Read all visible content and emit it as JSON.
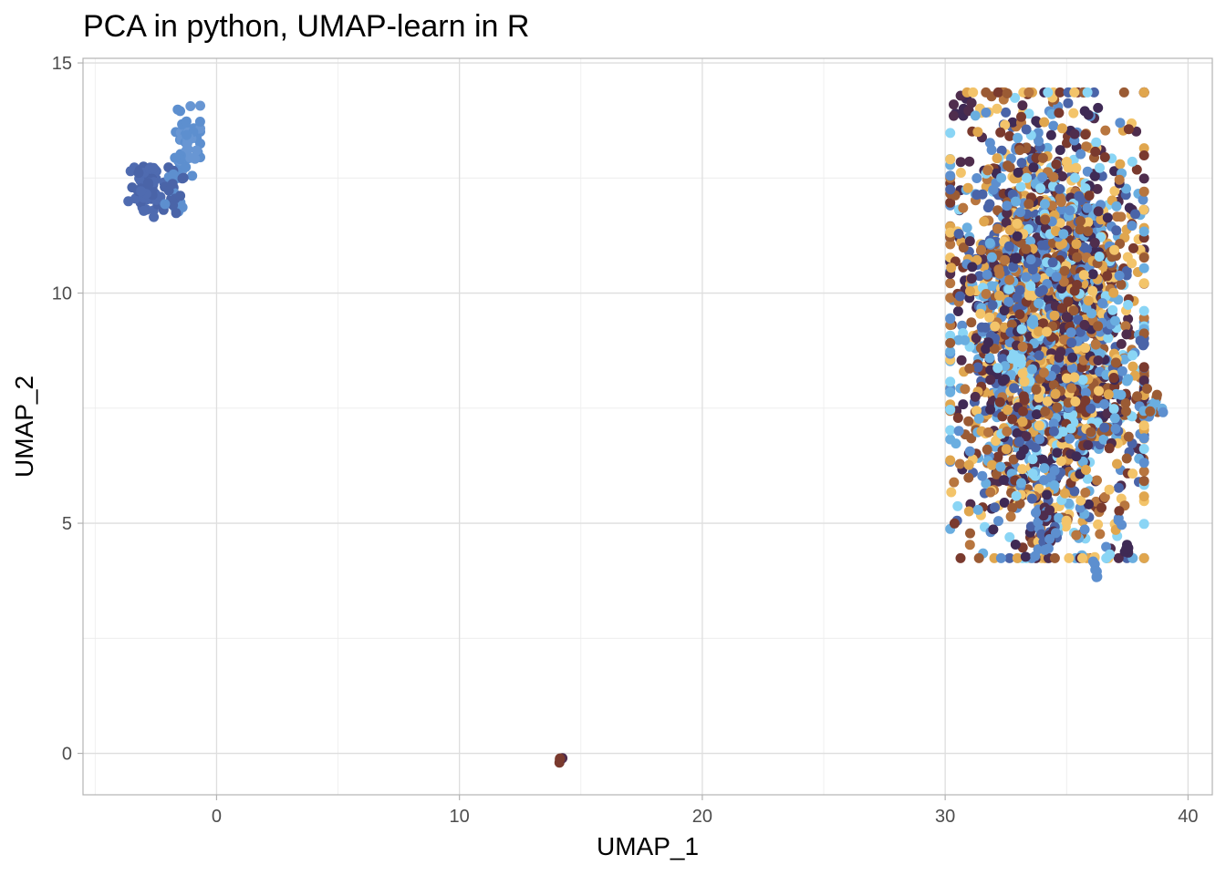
{
  "chart_data": {
    "type": "scatter",
    "title": "PCA in python, UMAP-learn in R",
    "xlabel": "UMAP_1",
    "ylabel": "UMAP_2",
    "xlim": [
      -5.5,
      41
    ],
    "ylim": [
      -0.9,
      15.1
    ],
    "x_ticks": [
      0,
      10,
      20,
      30,
      40
    ],
    "y_ticks": [
      0,
      5,
      10,
      15
    ],
    "x_tick_labels": [
      "0",
      "10",
      "20",
      "30",
      "40"
    ],
    "y_tick_labels": [
      "0",
      "5",
      "10",
      "15"
    ],
    "grid": true,
    "legend": "none",
    "colors": [
      "#4f2d4d",
      "#7a3a2e",
      "#9b5b34",
      "#b8763f",
      "#e0a64e",
      "#f3c46a",
      "#4a64a8",
      "#5d8fcf",
      "#6aaee0",
      "#8ad5f5",
      "#3f2a55"
    ],
    "clusters": [
      {
        "name": "",
        "center": [
          -2.9,
          12.3
        ],
        "spread": [
          0.35,
          0.3
        ],
        "count": 60,
        "colors": [
          "#4a64a8",
          "#4f6bb0"
        ]
      },
      {
        "name": "",
        "center": [
          -1.2,
          13.3
        ],
        "spread": [
          0.25,
          0.35
        ],
        "count": 60,
        "colors": [
          "#5d8fcf",
          "#6896d3"
        ]
      },
      {
        "name": "",
        "center": [
          -1.7,
          12.3
        ],
        "spread": [
          0.25,
          0.4
        ],
        "count": 30,
        "colors": [
          "#4a64a8",
          "#5d8fcf"
        ]
      },
      {
        "name": "",
        "center": [
          30.7,
          14.05
        ],
        "spread": [
          0.2,
          0.15
        ],
        "count": 12,
        "colors": [
          "#4f2d4d",
          "#3f2a55"
        ]
      },
      {
        "name": "",
        "center": [
          34.2,
          9.3
        ],
        "spread": [
          1.9,
          2.3
        ],
        "count": 2600,
        "colors": [
          "#4f2d4d",
          "#7a3a2e",
          "#9b5b34",
          "#b8763f",
          "#e0a64e",
          "#f3c46a",
          "#4a64a8",
          "#5d8fcf",
          "#6aaee0",
          "#8ad5f5",
          "#3f2a55"
        ]
      },
      {
        "name": "",
        "center": [
          34.1,
          4.9
        ],
        "spread": [
          0.3,
          0.3
        ],
        "count": 25,
        "colors": [
          "#4f2d4d",
          "#4a64a8",
          "#5d8fcf"
        ]
      },
      {
        "name": "",
        "center": [
          36.2,
          3.95
        ],
        "spread": [
          0.05,
          0.1
        ],
        "count": 6,
        "colors": [
          "#5d8fcf"
        ]
      },
      {
        "name": "",
        "center": [
          37.5,
          4.45
        ],
        "spread": [
          0.05,
          0.08
        ],
        "count": 6,
        "colors": [
          "#3f2a55"
        ]
      },
      {
        "name": "",
        "center": [
          38.5,
          7.5
        ],
        "spread": [
          0.3,
          0.2
        ],
        "count": 20,
        "colors": [
          "#5d8fcf",
          "#9b5b34",
          "#6aaee0"
        ]
      },
      {
        "name": "",
        "center": [
          14.15,
          -0.15
        ],
        "spread": [
          0.05,
          0.04
        ],
        "count": 4,
        "colors": [
          "#7a3a2e",
          "#4f2d4d"
        ]
      }
    ]
  }
}
